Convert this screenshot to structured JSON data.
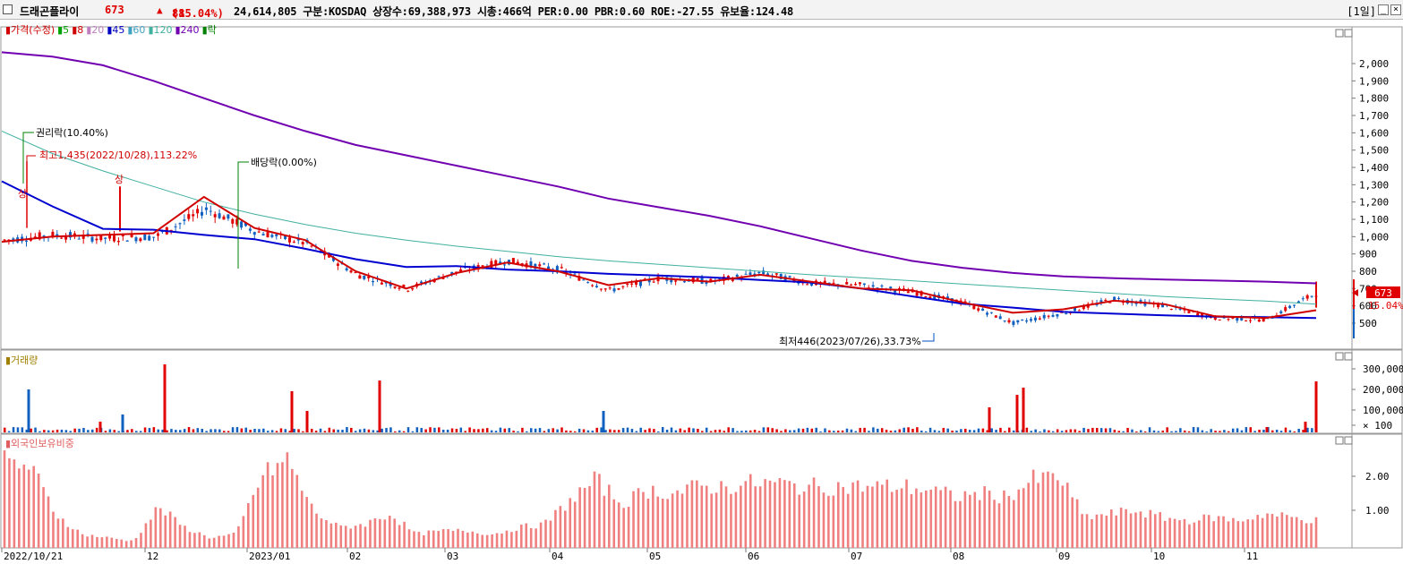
{
  "header": {
    "name": "드래곤플라이",
    "price": "673",
    "arrow": "▲",
    "change": "88",
    "change_pct": "(15.04%)",
    "stats": "24,614,805  구분:KOSDAQ 상장수:69,388,973 시총:466억 PER:0.00 PBR:0.60 ROE:-27.55 유보율:124.48",
    "period": "[1일]",
    "min_btn": "_",
    "close_btn": "×"
  },
  "panels": {
    "price": {
      "legend": [
        {
          "text": "▮가격(수정)",
          "color": "#d00000"
        },
        {
          "text": "▮5",
          "color": "#00a000"
        },
        {
          "text": "▮8",
          "color": "#d00000"
        },
        {
          "text": "▮20",
          "color": "#c080c0"
        },
        {
          "text": "▮45",
          "color": "#0000c0"
        },
        {
          "text": "▮60",
          "color": "#40a0c0"
        },
        {
          "text": "▮120",
          "color": "#40b0a0"
        },
        {
          "text": "▮240",
          "color": "#7000b0"
        },
        {
          "text": "▮락",
          "color": "#008000"
        }
      ],
      "current_label": "673",
      "current_pct": "15.04%"
    },
    "volume": {
      "legend": "▮거래량",
      "legend_color": "#a08000"
    },
    "foreign": {
      "legend": "▮외국인보유비중",
      "legend_color": "#e06060"
    }
  },
  "chart_data": [
    {
      "type": "candlestick",
      "title": "가격(수정)",
      "y_ticks": [
        "2,000",
        "1,900",
        "1,800",
        "1,700",
        "1,600",
        "1,500",
        "1,400",
        "1,300",
        "1,200",
        "1,100",
        "1,000",
        "900",
        "800",
        "700",
        "600",
        "500"
      ],
      "x_ticks": [
        "2022/10/21",
        "12",
        "2023/01",
        "02",
        "03",
        "04",
        "05",
        "06",
        "07",
        "08",
        "09",
        "10",
        "11"
      ],
      "series": [
        {
          "name": "5",
          "color": "#00a000"
        },
        {
          "name": "8",
          "color": "#d00000"
        },
        {
          "name": "20",
          "color": "#c080c0"
        },
        {
          "name": "45",
          "color": "#0000c0"
        },
        {
          "name": "60",
          "color": "#40a0c0"
        },
        {
          "name": "120",
          "color": "#40b0a0"
        },
        {
          "name": "240",
          "color": "#7000b0"
        }
      ],
      "ma240": [
        2065,
        2040,
        1990,
        1900,
        1800,
        1700,
        1610,
        1530,
        1470,
        1410,
        1350,
        1290,
        1220,
        1170,
        1120,
        1060,
        990,
        920,
        860,
        820,
        790,
        770,
        760,
        752,
        746,
        740,
        730
      ],
      "ma120": [
        1610,
        1480,
        1380,
        1290,
        1200,
        1130,
        1070,
        1020,
        980,
        945,
        915,
        885,
        860,
        840,
        820,
        800,
        780,
        762,
        745,
        726,
        708,
        690,
        672,
        654,
        640,
        628,
        610
      ],
      "ma45": [
        1320,
        1175,
        1045,
        1040,
        1010,
        985,
        930,
        870,
        825,
        830,
        810,
        800,
        785,
        775,
        765,
        750,
        735,
        700,
        655,
        612,
        590,
        565,
        555,
        545,
        538,
        535,
        530
      ],
      "ma8": [
        970,
        1000,
        1010,
        1020,
        1230,
        1050,
        980,
        800,
        700,
        790,
        850,
        800,
        720,
        760,
        740,
        780,
        740,
        700,
        690,
        620,
        560,
        580,
        630,
        610,
        540,
        530,
        575
      ],
      "closes": [
        980,
        1010,
        990,
        1000,
        1160,
        1030,
        960,
        780,
        700,
        800,
        860,
        810,
        690,
        760,
        740,
        790,
        730,
        720,
        680,
        620,
        500,
        560,
        640,
        600,
        530,
        520,
        673
      ],
      "annotations": [
        {
          "text": "권리락(10.40%)"
        },
        {
          "text": "최고1,435(2022/10/28),113.22%"
        },
        {
          "text": "상"
        },
        {
          "text": "배당락(0.00%)"
        },
        {
          "text": "최저446(2023/07/26),33.73%"
        }
      ]
    },
    {
      "type": "bar",
      "title": "거래량",
      "y_ticks": [
        "300,000",
        "200,000",
        "100,000",
        "× 100"
      ],
      "notes": "x100 shares; large spikes near 2022/12 and 2023/02, 08 and the final bar"
    },
    {
      "type": "bar",
      "title": "외국인보유비중",
      "y_ticks": [
        "2.00",
        "1.00"
      ]
    }
  ]
}
